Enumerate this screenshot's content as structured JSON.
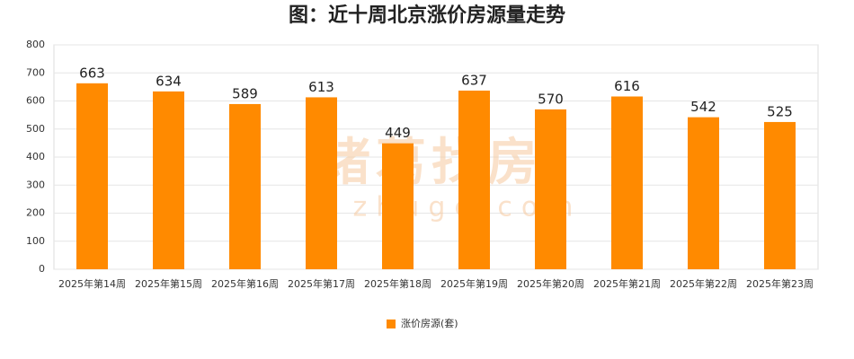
{
  "chart_data": {
    "type": "bar",
    "title": "图：近十周北京涨价房源量走势",
    "categories": [
      "2025年第14周",
      "2025年第15周",
      "2025年第16周",
      "2025年第17周",
      "2025年第18周",
      "2025年第19周",
      "2025年第20周",
      "2025年第21周",
      "2025年第22周",
      "2025年第23周"
    ],
    "series": [
      {
        "name": "涨价房源(套)",
        "color": "#ff8a00",
        "values": [
          663,
          634,
          589,
          613,
          449,
          637,
          570,
          616,
          542,
          525
        ]
      }
    ],
    "ylim": [
      0,
      800
    ],
    "yticks": [
      0,
      100,
      200,
      300,
      400,
      500,
      600,
      700,
      800
    ],
    "grid": true,
    "legend": "bottom",
    "watermark": [
      "诸葛找房",
      "zhuge.com"
    ]
  }
}
